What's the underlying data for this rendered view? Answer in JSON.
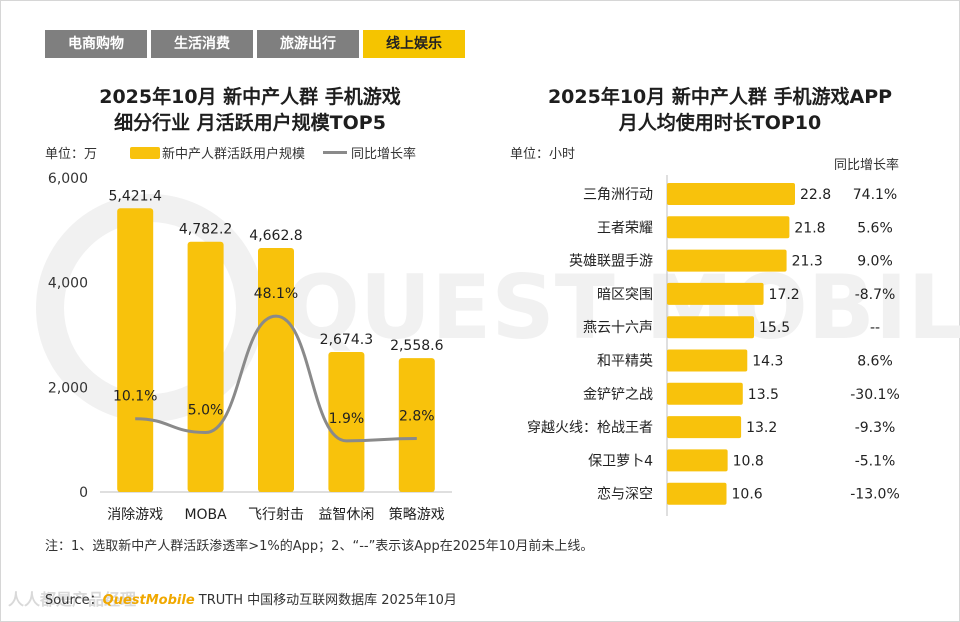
{
  "tabs": [
    {
      "label": "电商购物",
      "active": false
    },
    {
      "label": "生活消费",
      "active": false
    },
    {
      "label": "旅游出行",
      "active": false
    },
    {
      "label": "线上娱乐",
      "active": true
    }
  ],
  "left": {
    "title_line1": "2025年10月 新中产人群 手机游戏",
    "title_line2": "细分行业 月活跃用户规模TOP5",
    "unit": "单位：万",
    "legend_bar": "新中产人群活跃用户规模",
    "legend_line": "同比增长率"
  },
  "right": {
    "title_line1": "2025年10月 新中产人群 手机游戏APP",
    "title_line2": "月人均使用时长TOP10",
    "unit": "单位：小时",
    "growth_header": "同比增长率"
  },
  "chart_data": [
    {
      "type": "bar",
      "title": "2025年10月 新中产人群 手机游戏细分行业 月活跃用户规模TOP5",
      "categories": [
        "消除游戏",
        "MOBA",
        "飞行射击",
        "益智休闲",
        "策略游戏"
      ],
      "series": [
        {
          "name": "新中产人群活跃用户规模",
          "type": "bar",
          "values": [
            5421.4,
            4782.2,
            4662.8,
            2674.3,
            2558.6
          ],
          "labels": [
            "5,421.4",
            "4,782.2",
            "4,662.8",
            "2,674.3",
            "2,558.6"
          ]
        },
        {
          "name": "同比增长率",
          "type": "line",
          "values": [
            10.1,
            5.0,
            48.1,
            1.9,
            2.8
          ],
          "labels": [
            "10.1%",
            "5.0%",
            "48.1%",
            "1.9%",
            "2.8%"
          ]
        }
      ],
      "ylim": [
        0,
        6000
      ],
      "yticks": [
        0,
        2000,
        4000,
        6000
      ],
      "ytick_labels": [
        "0",
        "2,000",
        "4,000",
        "6,000"
      ],
      "ylabel": "万",
      "bar_color": "#F8C20C",
      "line_color": "#8A8A8A"
    },
    {
      "type": "bar",
      "orientation": "horizontal",
      "title": "2025年10月 新中产人群 手机游戏APP 月人均使用时长TOP10",
      "categories": [
        "三角洲行动",
        "王者荣耀",
        "英雄联盟手游",
        "暗区突围",
        "燕云十六声",
        "和平精英",
        "金铲铲之战",
        "穿越火线：枪战王者",
        "保卫萝卜4",
        "恋与深空"
      ],
      "values": [
        22.8,
        21.8,
        21.3,
        17.2,
        15.5,
        14.3,
        13.5,
        13.2,
        10.8,
        10.6
      ],
      "value_labels": [
        "22.8",
        "21.8",
        "21.3",
        "17.2",
        "15.5",
        "14.3",
        "13.5",
        "13.2",
        "10.8",
        "10.6"
      ],
      "growth": [
        "74.1%",
        "5.6%",
        "9.0%",
        "-8.7%",
        "--",
        "8.6%",
        "-30.1%",
        "-9.3%",
        "-5.1%",
        "-13.0%"
      ],
      "xlim": [
        0,
        25
      ],
      "xlabel": "小时",
      "bar_color": "#F8C20C"
    }
  ],
  "note": "注：1、选取新中产人群活跃渗透率>1%的App；2、“--”表示该App在2025年10月前未上线。",
  "source": {
    "prefix": "Source：",
    "brand": "QuestMobile",
    "suffix": " TRUTH 中国移动互联网数据库 2025年10月"
  },
  "watermark": {
    "center": "QUEST MOBILE",
    "corner": "人人都是产品经理"
  }
}
